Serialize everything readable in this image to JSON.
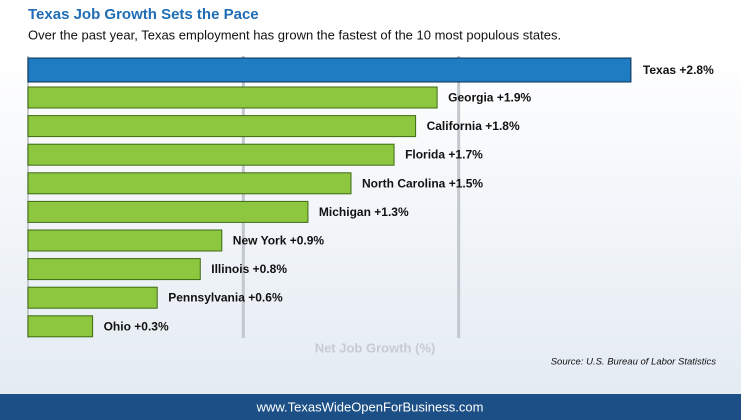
{
  "chart_data": {
    "type": "bar",
    "orientation": "horizontal",
    "title": "Texas Job Growth Sets the Pace",
    "subtitle": "Over the past year, Texas employment has grown the fastest of the 10 most populous states.",
    "categories": [
      "Texas",
      "Georgia",
      "California",
      "Florida",
      "North Carolina",
      "Michigan",
      "New York",
      "Illinois",
      "Pennsylvania",
      "Ohio"
    ],
    "values": [
      2.8,
      1.9,
      1.8,
      1.7,
      1.5,
      1.3,
      0.9,
      0.8,
      0.6,
      0.3
    ],
    "value_labels": [
      "+2.8%",
      "+1.9%",
      "+1.8%",
      "+1.7%",
      "+1.5%",
      "+1.3%",
      "+0.9%",
      "+0.8%",
      "+0.6%",
      "+0.3%"
    ],
    "colors": [
      "#1f7cc2",
      "#8dc63f",
      "#8dc63f",
      "#8dc63f",
      "#8dc63f",
      "#8dc63f",
      "#8dc63f",
      "#8dc63f",
      "#8dc63f",
      "#8dc63f"
    ],
    "xlabel": "Net Job Growth (%)",
    "xlim": [
      0,
      3
    ],
    "xticks": [
      1,
      2
    ],
    "grid": true,
    "source": "Source: U.S. Bureau of Labor Statistics",
    "footer": "www.TexasWideOpenForBusiness.com"
  }
}
